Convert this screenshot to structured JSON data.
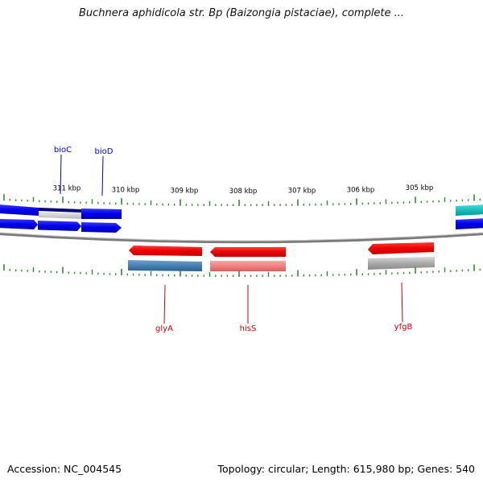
{
  "title": "Buchnera aphidicola str. Bp (Baizongia pistaciae), complete ...",
  "footer": {
    "accession": "Accession: NC_004545",
    "summary": "Topology: circular; Length: 615,980 bp; Genes: 540"
  },
  "scale": {
    "unit": "kbp",
    "major_ticks": [
      {
        "value": 311,
        "label": "311 kbp"
      },
      {
        "value": 310,
        "label": "310 kbp"
      },
      {
        "value": 309,
        "label": "309 kbp"
      },
      {
        "value": 308,
        "label": "308 kbp"
      },
      {
        "value": 307,
        "label": "307 kbp"
      },
      {
        "value": 306,
        "label": "306 kbp"
      },
      {
        "value": 305,
        "label": "305 kbp"
      }
    ]
  },
  "gene_labels": {
    "forward": [
      {
        "name": "bioC",
        "color": "#0000cc"
      },
      {
        "name": "bioD",
        "color": "#0000cc"
      }
    ],
    "reverse": [
      {
        "name": "glyA",
        "color": "#cc0000"
      },
      {
        "name": "hisS",
        "color": "#cc0000"
      },
      {
        "name": "yfgB",
        "color": "#cc0000"
      }
    ]
  },
  "colors": {
    "forward_gene": "#0000ee",
    "reverse_gene": "#ee0000",
    "backbone": "#777777",
    "tick": "#2e8b2e",
    "rna_teal": "#00bcbc",
    "steel_blue": "#4682b4",
    "light_red": "#f08080",
    "gray": "#a9a9a9"
  }
}
